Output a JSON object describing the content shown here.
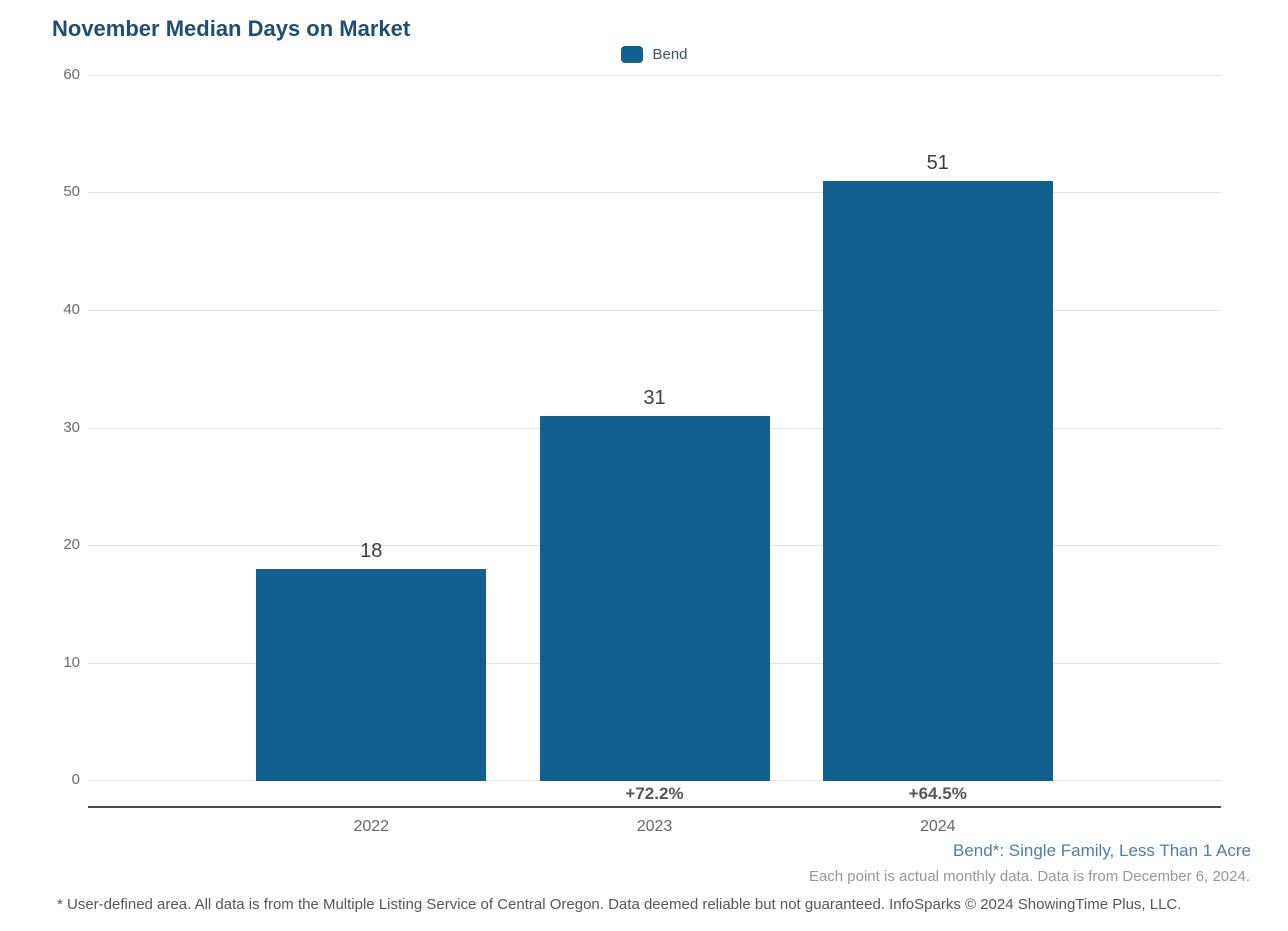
{
  "chart": {
    "title": "November Median Days on Market",
    "legend_label": "Bend"
  },
  "chart_data": {
    "type": "bar",
    "title": "November Median Days on Market",
    "categories": [
      "2022",
      "2023",
      "2024"
    ],
    "series": [
      {
        "name": "Bend",
        "values": [
          18,
          31,
          51
        ]
      }
    ],
    "value_labels": [
      "18",
      "31",
      "51"
    ],
    "change_labels": [
      "",
      "+72.2%",
      "+64.5%"
    ],
    "xlabel": "",
    "ylabel": "",
    "ylim": [
      0,
      60
    ],
    "yticks": [
      0,
      10,
      20,
      30,
      40,
      50,
      60
    ],
    "grid": true,
    "legend_position": "top-center",
    "bar_color": "#11608F"
  },
  "notes": {
    "series_note": "Bend*: Single Family, Less Than 1 Acre",
    "data_note": "Each point is actual monthly data. Data is from December 6, 2024.",
    "disclaimer": "* User-defined area. All data is from the Multiple Listing Service of Central Oregon. Data deemed reliable but not guaranteed. InfoSparks © 2024 ShowingTime Plus, LLC."
  },
  "colors": {
    "bar": "#11608F",
    "title": "#1F4E74",
    "series_note": "#4E7DAB",
    "gridline": "#E3E3E3",
    "axis_line": "#4A4A4A"
  }
}
